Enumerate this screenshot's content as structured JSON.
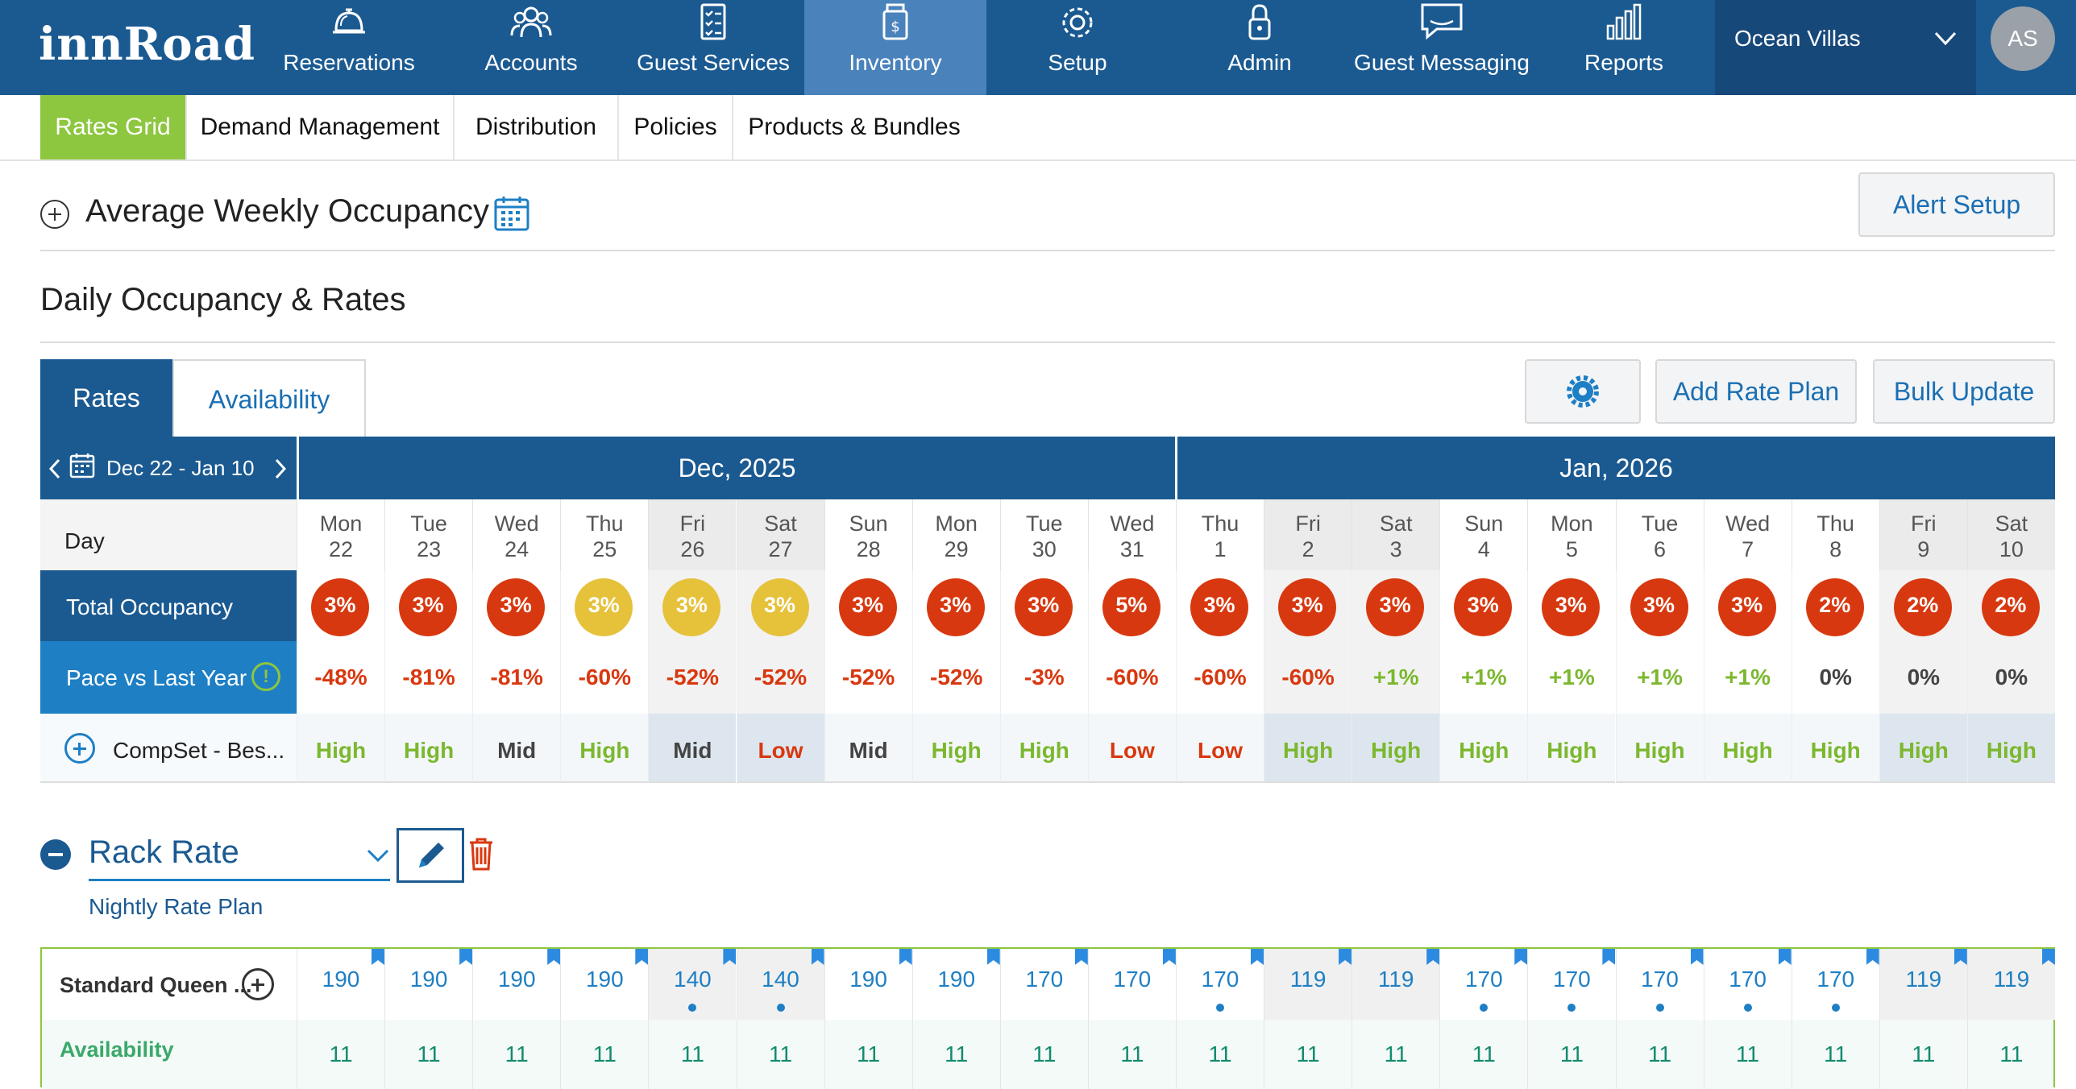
{
  "app": {
    "logo": "innRoad",
    "property": "Ocean Villas",
    "avatar_initials": "AS"
  },
  "nav": [
    {
      "label": "Reservations",
      "icon": "bell-icon",
      "active": false
    },
    {
      "label": "Accounts",
      "icon": "people-icon",
      "active": false
    },
    {
      "label": "Guest Services",
      "icon": "checklist-icon",
      "active": false
    },
    {
      "label": "Inventory",
      "icon": "inventory-icon",
      "active": true
    },
    {
      "label": "Setup",
      "icon": "gear-icon",
      "active": false
    },
    {
      "label": "Admin",
      "icon": "lock-icon",
      "active": false
    },
    {
      "label": "Guest Messaging",
      "icon": "message-icon",
      "active": false
    },
    {
      "label": "Reports",
      "icon": "bar-chart-icon",
      "active": false
    }
  ],
  "subnav": [
    {
      "label": "Rates Grid",
      "active": true
    },
    {
      "label": "Demand Management",
      "active": false
    },
    {
      "label": "Distribution",
      "active": false
    },
    {
      "label": "Policies",
      "active": false
    },
    {
      "label": "Products & Bundles",
      "active": false
    }
  ],
  "awo": {
    "title": "Average Weekly Occupancy"
  },
  "alert_setup": "Alert Setup",
  "section_title": "Daily Occupancy & Rates",
  "tabs": {
    "rates": "Rates",
    "availability": "Availability"
  },
  "buttons": {
    "add_rate_plan": "Add Rate Plan",
    "bulk_update": "Bulk Update"
  },
  "grid": {
    "date_range": "Dec 22 - Jan 10",
    "months": [
      "Dec, 2025",
      "Jan, 2026"
    ],
    "row_labels": {
      "day": "Day",
      "occupancy": "Total Occupancy",
      "pace": "Pace vs Last Year",
      "compset": "CompSet - Bes..."
    },
    "days": [
      {
        "dow": "Mon",
        "date": "22",
        "weekend": false,
        "occ": "3%",
        "occ_color": "red",
        "pace": "-48%",
        "comp": "High"
      },
      {
        "dow": "Tue",
        "date": "23",
        "weekend": false,
        "occ": "3%",
        "occ_color": "red",
        "pace": "-81%",
        "comp": "High"
      },
      {
        "dow": "Wed",
        "date": "24",
        "weekend": false,
        "occ": "3%",
        "occ_color": "red",
        "pace": "-81%",
        "comp": "Mid"
      },
      {
        "dow": "Thu",
        "date": "25",
        "weekend": false,
        "occ": "3%",
        "occ_color": "yellow",
        "pace": "-60%",
        "comp": "High"
      },
      {
        "dow": "Fri",
        "date": "26",
        "weekend": true,
        "occ": "3%",
        "occ_color": "yellow",
        "pace": "-52%",
        "comp": "Mid"
      },
      {
        "dow": "Sat",
        "date": "27",
        "weekend": true,
        "occ": "3%",
        "occ_color": "yellow",
        "pace": "-52%",
        "comp": "Low"
      },
      {
        "dow": "Sun",
        "date": "28",
        "weekend": false,
        "occ": "3%",
        "occ_color": "red",
        "pace": "-52%",
        "comp": "Mid"
      },
      {
        "dow": "Mon",
        "date": "29",
        "weekend": false,
        "occ": "3%",
        "occ_color": "red",
        "pace": "-52%",
        "comp": "High"
      },
      {
        "dow": "Tue",
        "date": "30",
        "weekend": false,
        "occ": "3%",
        "occ_color": "red",
        "pace": "-3%",
        "comp": "High"
      },
      {
        "dow": "Wed",
        "date": "31",
        "weekend": false,
        "occ": "5%",
        "occ_color": "red",
        "pace": "-60%",
        "comp": "Low"
      },
      {
        "dow": "Thu",
        "date": "1",
        "weekend": false,
        "occ": "3%",
        "occ_color": "red",
        "pace": "-60%",
        "comp": "Low"
      },
      {
        "dow": "Fri",
        "date": "2",
        "weekend": true,
        "occ": "3%",
        "occ_color": "red",
        "pace": "-60%",
        "comp": "High"
      },
      {
        "dow": "Sat",
        "date": "3",
        "weekend": true,
        "occ": "3%",
        "occ_color": "red",
        "pace": "+1%",
        "comp": "High"
      },
      {
        "dow": "Sun",
        "date": "4",
        "weekend": false,
        "occ": "3%",
        "occ_color": "red",
        "pace": "+1%",
        "comp": "High"
      },
      {
        "dow": "Mon",
        "date": "5",
        "weekend": false,
        "occ": "3%",
        "occ_color": "red",
        "pace": "+1%",
        "comp": "High"
      },
      {
        "dow": "Tue",
        "date": "6",
        "weekend": false,
        "occ": "3%",
        "occ_color": "red",
        "pace": "+1%",
        "comp": "High"
      },
      {
        "dow": "Wed",
        "date": "7",
        "weekend": false,
        "occ": "3%",
        "occ_color": "red",
        "pace": "+1%",
        "comp": "High"
      },
      {
        "dow": "Thu",
        "date": "8",
        "weekend": false,
        "occ": "2%",
        "occ_color": "red",
        "pace": "0%",
        "comp": "High"
      },
      {
        "dow": "Fri",
        "date": "9",
        "weekend": true,
        "occ": "2%",
        "occ_color": "red",
        "pace": "0%",
        "comp": "High"
      },
      {
        "dow": "Sat",
        "date": "10",
        "weekend": true,
        "occ": "2%",
        "occ_color": "red",
        "pace": "0%",
        "comp": "High"
      }
    ]
  },
  "rate_plan": {
    "name": "Rack Rate",
    "subtitle": "Nightly Rate Plan",
    "room_type": "Standard Queen ...",
    "availability_label": "Availability",
    "prices": [
      "190",
      "190",
      "190",
      "190",
      "140",
      "140",
      "190",
      "190",
      "170",
      "170",
      "170",
      "119",
      "119",
      "170",
      "170",
      "170",
      "170",
      "170",
      "119",
      "119"
    ],
    "availability": [
      "11",
      "11",
      "11",
      "11",
      "11",
      "11",
      "11",
      "11",
      "11",
      "11",
      "11",
      "11",
      "11",
      "11",
      "11",
      "11",
      "11",
      "11",
      "11",
      "11"
    ],
    "dots": [
      false,
      false,
      false,
      false,
      true,
      true,
      false,
      false,
      false,
      false,
      true,
      false,
      false,
      true,
      true,
      true,
      true,
      true,
      false,
      false
    ]
  },
  "colors": {
    "brand": "#1b5a91",
    "accent_green": "#8dc63f",
    "negative": "#d8380f",
    "link": "#1a6fb3"
  }
}
